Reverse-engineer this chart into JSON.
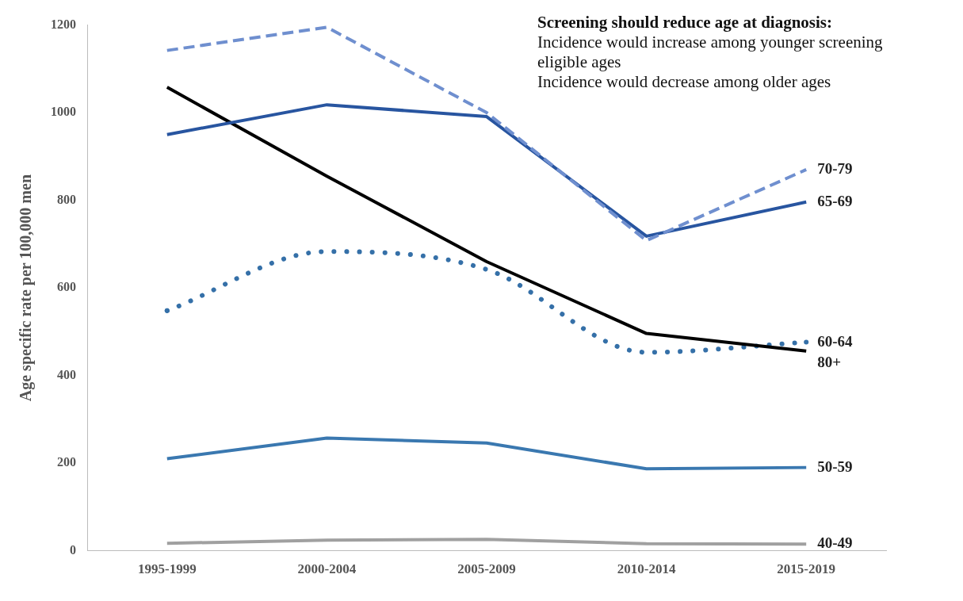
{
  "chart_data": {
    "type": "line",
    "ylabel": "Age specific rate per 100,000 men",
    "categories": [
      "1995-1999",
      "2000-2004",
      "2005-2009",
      "2010-2014",
      "2015-2019"
    ],
    "ylim": [
      0,
      1200
    ],
    "yticks": [
      0,
      200,
      400,
      600,
      800,
      1000,
      1200
    ],
    "grid": false,
    "legend": false,
    "marker": "none",
    "annotations": [
      "Screening should reduce age at diagnosis:",
      "Incidence would increase among younger screening eligible ages",
      "Incidence would decrease among older ages"
    ],
    "series": [
      {
        "name": "70-79",
        "color": "#6f8fcf",
        "line_style": "dashed",
        "values": [
          1142,
          1195,
          1000,
          708,
          870
        ]
      },
      {
        "name": "65-69",
        "color": "#2855a0",
        "line_style": "solid",
        "values": [
          950,
          1018,
          991,
          718,
          796
        ]
      },
      {
        "name": "80+",
        "color": "#000000",
        "line_style": "solid",
        "values": [
          1058,
          855,
          660,
          496,
          456
        ]
      },
      {
        "name": "60-64",
        "color": "#3570a8",
        "line_style": "dotted",
        "values": [
          548,
          683,
          642,
          453,
          476
        ]
      },
      {
        "name": "50-59",
        "color": "#3a78b0",
        "line_style": "solid",
        "values": [
          210,
          257,
          246,
          187,
          190
        ]
      },
      {
        "name": "40-49",
        "color": "#a0a0a0",
        "line_style": "solid",
        "values": [
          17,
          24,
          26,
          16,
          15
        ]
      }
    ]
  }
}
